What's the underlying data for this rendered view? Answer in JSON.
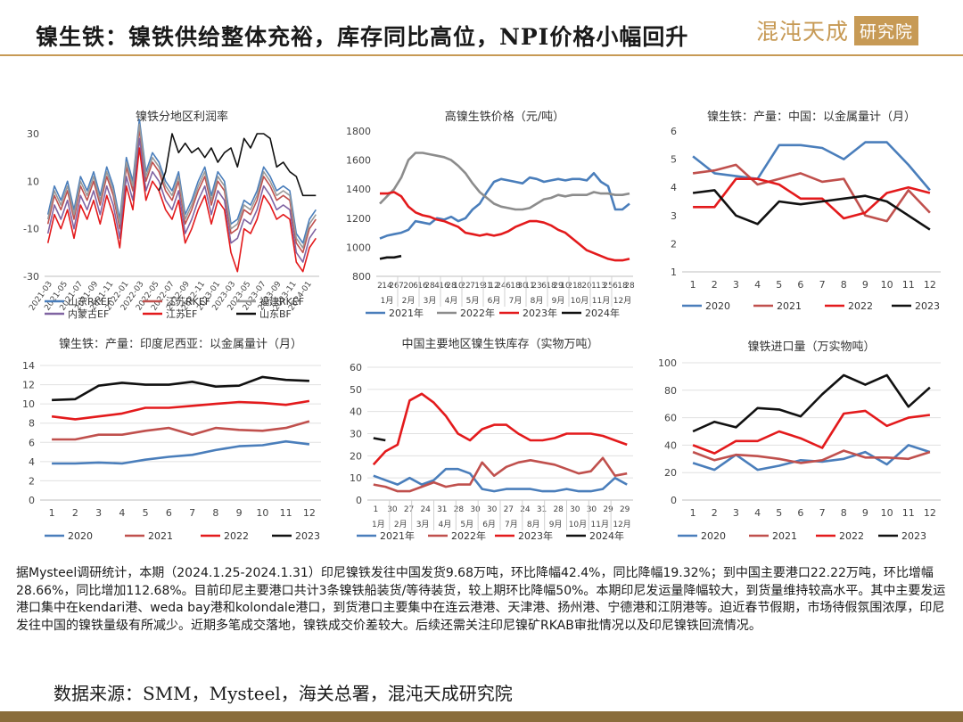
{
  "header": {
    "title": "镍生铁：镍铁供给整体充裕，库存同比高位，NPI价格小幅回升",
    "logo_text": "混沌天成",
    "logo_badge": "研究院"
  },
  "colors": {
    "accent": "#c79a55",
    "blue": "#4a7ebb",
    "salmon": "#c0504d",
    "red": "#e31a1c",
    "black": "#111111",
    "gray": "#8c8c8c",
    "purple": "#8064a2"
  },
  "chart_data": [
    {
      "type": "line",
      "title": "镍铁分地区利润率",
      "ylim": [
        -30,
        30
      ],
      "yticks": [
        "30",
        "10",
        "-10",
        "-30"
      ],
      "xticks": [
        "2021-03",
        "2021-05",
        "2021-07",
        "2021-09",
        "2021-11",
        "2022-01",
        "2022-03",
        "2022-05",
        "2022-07",
        "2022-09",
        "2022-11",
        "2023-01",
        "2023-03",
        "2023-05",
        "2023-07",
        "2023-09",
        "2023-11",
        "2024-01"
      ],
      "legend": "bottom",
      "series": [
        {
          "name": "山东RKEF",
          "color": "#4a7ebb",
          "values": [
            -4,
            8,
            2,
            10,
            -2,
            12,
            6,
            14,
            4,
            16,
            8,
            -6,
            20,
            10,
            36,
            14,
            22,
            18,
            10,
            6,
            14,
            -4,
            2,
            10,
            16,
            4,
            14,
            10,
            -8,
            -6,
            2,
            0,
            6,
            16,
            12,
            6,
            8,
            6,
            -12,
            -16,
            -6,
            -2
          ]
        },
        {
          "name": "江苏RKEF",
          "color": "#c0504d",
          "values": [
            -8,
            4,
            -2,
            6,
            -6,
            8,
            2,
            10,
            0,
            12,
            4,
            -10,
            16,
            6,
            32,
            10,
            18,
            14,
            6,
            2,
            10,
            -8,
            -2,
            6,
            12,
            0,
            10,
            6,
            -12,
            -10,
            -2,
            -4,
            2,
            12,
            8,
            2,
            4,
            2,
            -16,
            -20,
            -10,
            -6
          ]
        },
        {
          "name": "福建RKEF",
          "color": "#999999",
          "values": [
            -6,
            6,
            0,
            8,
            -4,
            10,
            4,
            12,
            2,
            14,
            6,
            -8,
            18,
            8,
            34,
            12,
            20,
            16,
            8,
            4,
            12,
            -6,
            0,
            8,
            14,
            2,
            12,
            8,
            -10,
            -8,
            0,
            -2,
            4,
            14,
            10,
            4,
            6,
            4,
            -14,
            -18,
            -8,
            -4
          ]
        },
        {
          "name": "内蒙古EF",
          "color": "#8064a2",
          "values": [
            -12,
            0,
            -6,
            2,
            -10,
            4,
            -2,
            6,
            -4,
            8,
            0,
            -14,
            12,
            2,
            28,
            6,
            14,
            10,
            2,
            -2,
            6,
            -12,
            -6,
            2,
            8,
            -4,
            6,
            2,
            -16,
            -14,
            -6,
            -8,
            -2,
            8,
            4,
            -2,
            0,
            -2,
            -20,
            -24,
            -14,
            -10
          ]
        },
        {
          "name": "江苏EF",
          "color": "#e31a1c",
          "values": [
            -16,
            -4,
            -10,
            -2,
            -14,
            0,
            -6,
            2,
            -8,
            4,
            -4,
            -18,
            8,
            -2,
            24,
            2,
            10,
            6,
            -2,
            -6,
            2,
            -16,
            -10,
            -2,
            4,
            -8,
            2,
            -2,
            -20,
            -28,
            -10,
            -12,
            -6,
            4,
            0,
            -6,
            -4,
            -6,
            -24,
            -28,
            -18,
            -14
          ]
        },
        {
          "name": "山东BF",
          "color": "#111111",
          "values": [
            null,
            null,
            null,
            null,
            null,
            null,
            null,
            null,
            null,
            null,
            null,
            null,
            null,
            null,
            null,
            null,
            null,
            6,
            14,
            30,
            22,
            26,
            22,
            24,
            20,
            24,
            18,
            22,
            24,
            16,
            28,
            24,
            30,
            30,
            28,
            16,
            18,
            14,
            12,
            4,
            4,
            4
          ]
        }
      ]
    },
    {
      "type": "line",
      "title": "高镍生铁价格（元/吨）",
      "ylim": [
        800,
        1800
      ],
      "yticks": [
        "1800",
        "1600",
        "1400",
        "1200",
        "1000",
        "800"
      ],
      "xticks": [
        "2",
        "14",
        "26",
        "7",
        "20",
        "6",
        "16",
        "28",
        "4",
        "16",
        "28",
        "10",
        "22",
        "7",
        "19",
        "31",
        "12",
        "24",
        "6",
        "18",
        "30",
        "11",
        "23",
        "6",
        "18",
        "29",
        "10",
        "21",
        "8",
        "20",
        "1",
        "13",
        "25",
        "6",
        "18",
        "28"
      ],
      "xgroups": [
        "1月",
        "2月",
        "3月",
        "4月",
        "5月",
        "6月",
        "7月",
        "8月",
        "9月",
        "10月",
        "11月",
        "12月"
      ],
      "legend": "bottom",
      "series": [
        {
          "name": "2021年",
          "color": "#4a7ebb",
          "values": [
            1060,
            1080,
            1090,
            1100,
            1120,
            1180,
            1170,
            1160,
            1200,
            1190,
            1210,
            1180,
            1200,
            1260,
            1300,
            1380,
            1450,
            1470,
            1460,
            1450,
            1440,
            1480,
            1470,
            1450,
            1460,
            1470,
            1460,
            1470,
            1470,
            1460,
            1510,
            1450,
            1420,
            1260,
            1260,
            1300
          ]
        },
        {
          "name": "2022年",
          "color": "#8c8c8c",
          "values": [
            1300,
            1350,
            1400,
            1480,
            1600,
            1650,
            1650,
            1640,
            1630,
            1620,
            1600,
            1560,
            1510,
            1440,
            1380,
            1340,
            1300,
            1280,
            1270,
            1260,
            1260,
            1270,
            1300,
            1330,
            1340,
            1360,
            1350,
            1360,
            1360,
            1360,
            1380,
            1370,
            1370,
            1360,
            1360,
            1370
          ]
        },
        {
          "name": "2023年",
          "color": "#e31a1c",
          "values": [
            1370,
            1370,
            1380,
            1350,
            1280,
            1240,
            1220,
            1210,
            1190,
            1180,
            1160,
            1140,
            1100,
            1090,
            1080,
            1090,
            1080,
            1090,
            1110,
            1140,
            1160,
            1180,
            1180,
            1170,
            1150,
            1120,
            1100,
            1060,
            1020,
            980,
            960,
            940,
            920,
            910,
            910,
            920
          ]
        },
        {
          "name": "2024年",
          "color": "#111111",
          "values": [
            920,
            930,
            930,
            940,
            null,
            null,
            null,
            null,
            null,
            null,
            null,
            null,
            null,
            null,
            null,
            null,
            null,
            null,
            null,
            null,
            null,
            null,
            null,
            null,
            null,
            null,
            null,
            null,
            null,
            null,
            null,
            null,
            null,
            null,
            null,
            null
          ]
        }
      ]
    },
    {
      "type": "line",
      "title": "镍生铁：产量：中国：以金属量计（月）",
      "ylim": [
        1,
        6
      ],
      "yticks": [
        "6",
        "5",
        "4",
        "3",
        "2",
        "1"
      ],
      "categories": [
        "1",
        "2",
        "3",
        "4",
        "5",
        "6",
        "7",
        "8",
        "9",
        "10",
        "11",
        "12"
      ],
      "legend": "bottom",
      "series": [
        {
          "name": "2020",
          "color": "#4a7ebb",
          "values": [
            5.1,
            4.5,
            4.4,
            4.3,
            5.5,
            5.5,
            5.4,
            5.0,
            5.6,
            5.6,
            4.8,
            3.9
          ]
        },
        {
          "name": "2021",
          "color": "#c0504d",
          "values": [
            4.5,
            4.6,
            4.8,
            4.1,
            4.3,
            4.5,
            4.2,
            4.3,
            3.0,
            2.8,
            3.9,
            3.1
          ]
        },
        {
          "name": "2022",
          "color": "#e31a1c",
          "values": [
            3.3,
            3.3,
            4.3,
            4.3,
            4.1,
            3.6,
            3.6,
            2.9,
            3.1,
            3.8,
            4.0,
            3.8
          ]
        },
        {
          "name": "2023",
          "color": "#111111",
          "values": [
            3.8,
            3.9,
            3.0,
            2.7,
            3.5,
            3.4,
            3.5,
            3.6,
            3.7,
            3.5,
            3.0,
            2.5
          ]
        }
      ]
    },
    {
      "type": "line",
      "title": "镍生铁：产量：印度尼西亚：以金属量计（月）",
      "ylim": [
        0,
        14
      ],
      "yticks": [
        "14",
        "12",
        "10",
        "8",
        "6",
        "4",
        "2",
        "0"
      ],
      "categories": [
        "1",
        "2",
        "3",
        "4",
        "5",
        "6",
        "7",
        "8",
        "9",
        "10",
        "11",
        "12"
      ],
      "legend": "bottom",
      "series": [
        {
          "name": "2020",
          "color": "#4a7ebb",
          "values": [
            3.8,
            3.8,
            3.9,
            3.8,
            4.2,
            4.5,
            4.7,
            5.2,
            5.6,
            5.7,
            6.1,
            5.8
          ]
        },
        {
          "name": "2021",
          "color": "#c0504d",
          "values": [
            6.3,
            6.3,
            6.8,
            6.8,
            7.2,
            7.5,
            6.8,
            7.5,
            7.3,
            7.2,
            7.5,
            8.2
          ]
        },
        {
          "name": "2022",
          "color": "#e31a1c",
          "values": [
            8.7,
            8.4,
            8.7,
            9.0,
            9.6,
            9.6,
            9.8,
            10.0,
            10.2,
            10.1,
            9.9,
            10.3
          ]
        },
        {
          "name": "2023",
          "color": "#111111",
          "values": [
            10.4,
            10.5,
            11.9,
            12.2,
            12.0,
            12.0,
            12.3,
            11.8,
            11.9,
            12.8,
            12.5,
            12.4
          ]
        }
      ]
    },
    {
      "type": "line",
      "title": "中国主要地区镍生铁库存（实物万吨）",
      "ylim": [
        0,
        60
      ],
      "yticks": [
        "60",
        "50",
        "40",
        "30",
        "20",
        "10",
        "0"
      ],
      "xticks": [
        "1",
        "30",
        "27",
        "24",
        "31",
        "28",
        "30",
        "30",
        "27",
        "24",
        "31",
        "28",
        "30",
        "30",
        "29",
        "29"
      ],
      "xgroups": [
        "1月",
        "2月",
        "3月",
        "4月",
        "5月",
        "6月",
        "7月",
        "8月",
        "9月",
        "10月",
        "11月",
        "12月"
      ],
      "legend": "bottom",
      "series": [
        {
          "name": "2021年",
          "color": "#4a7ebb",
          "values": [
            11,
            9,
            7,
            10,
            7,
            9,
            14,
            14,
            12,
            5,
            4,
            5,
            5,
            5,
            4,
            4,
            5,
            4,
            4,
            5,
            10,
            7
          ]
        },
        {
          "name": "2022年",
          "color": "#c0504d",
          "values": [
            7,
            6,
            4,
            4,
            6,
            8,
            6,
            7,
            7,
            17,
            11,
            15,
            17,
            18,
            17,
            16,
            14,
            12,
            13,
            19,
            11,
            12
          ]
        },
        {
          "name": "2023年",
          "color": "#e31a1c",
          "values": [
            16,
            22,
            25,
            45,
            48,
            44,
            38,
            30,
            27,
            32,
            34,
            34,
            30,
            27,
            27,
            28,
            30,
            30,
            30,
            29,
            27,
            25
          ]
        },
        {
          "name": "2024年",
          "color": "#111111",
          "values": [
            28,
            27,
            null,
            null,
            null,
            null,
            null,
            null,
            null,
            null,
            null,
            null,
            null,
            null,
            null,
            null,
            null,
            null,
            null,
            null,
            null,
            null
          ]
        }
      ]
    },
    {
      "type": "line",
      "title": "镍铁进口量（万实物吨）",
      "ylim": [
        0,
        100
      ],
      "yticks": [
        "100",
        "80",
        "60",
        "40",
        "20",
        "0"
      ],
      "categories": [
        "1",
        "2",
        "3",
        "4",
        "5",
        "6",
        "7",
        "8",
        "9",
        "10",
        "11",
        "12"
      ],
      "legend": "bottom",
      "series": [
        {
          "name": "2020",
          "color": "#4a7ebb",
          "values": [
            27,
            22,
            33,
            22,
            25,
            29,
            28,
            30,
            35,
            26,
            40,
            35
          ]
        },
        {
          "name": "2021",
          "color": "#c0504d",
          "values": [
            35,
            29,
            33,
            32,
            30,
            27,
            29,
            36,
            31,
            31,
            30,
            35
          ]
        },
        {
          "name": "2022",
          "color": "#e31a1c",
          "values": [
            40,
            34,
            43,
            43,
            50,
            45,
            38,
            63,
            65,
            54,
            60,
            62
          ]
        },
        {
          "name": "2023",
          "color": "#111111",
          "values": [
            50,
            57,
            53,
            67,
            66,
            61,
            77,
            91,
            84,
            91,
            68,
            82
          ]
        }
      ]
    }
  ],
  "description": "据Mysteel调研统计，本期（2024.1.25-2024.1.31）印尼镍铁发往中国发货9.68万吨，环比降幅42.4%，同比降幅19.32%；到中国主要港口22.22万吨，环比增幅28.66%，同比增加112.68%。目前印尼主要港口共计3条镍铁船装货/等待装货，较上期环比降幅50%。本期印尼发运量降幅较大，到货量维持较高水平。其中主要发运港口集中在kendari港、weda bay港和kolondale港口，到货港口主要集中在连云港港、天津港、扬州港、宁德港和江阴港等。迫近春节假期，市场待假氛围浓厚，印尼发往中国的镍铁量级有所减少。近期多笔成交落地，镍铁成交价差较大。后续还需关注印尼镍矿RKAB审批情况以及印尼镍铁回流情况。",
  "source": "数据来源：SMM，Mysteel，海关总署，混沌天成研究院"
}
